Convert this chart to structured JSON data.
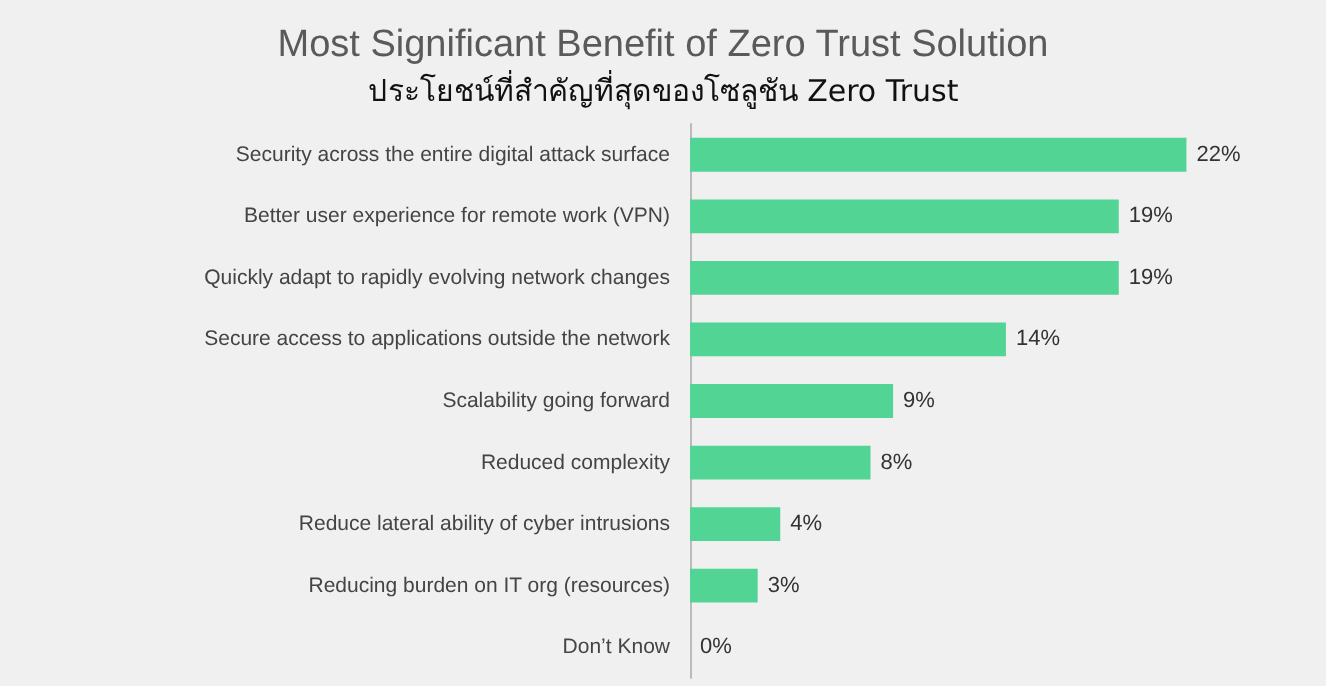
{
  "chart_data": {
    "type": "bar",
    "orientation": "horizontal",
    "title": "Most Significant Benefit of Zero Trust Solution",
    "subtitle": "ประโยชน์ที่สำคัญที่สุดของโซลูชัน Zero Trust",
    "categories": [
      "Security across the entire digital attack surface",
      "Better user experience for remote work (VPN)",
      "Quickly adapt to rapidly evolving network changes",
      "Secure access to applications outside the network",
      "Scalability going forward",
      "Reduced complexity",
      "Reduce lateral ability of cyber intrusions",
      "Reducing burden on IT org (resources)",
      "Don’t Know"
    ],
    "values": [
      22,
      19,
      19,
      14,
      9,
      8,
      4,
      3,
      0
    ],
    "value_labels": [
      "22%",
      "19%",
      "19%",
      "14%",
      "9%",
      "8%",
      "4%",
      "3%",
      "0%"
    ],
    "color": "#52d495"
  }
}
